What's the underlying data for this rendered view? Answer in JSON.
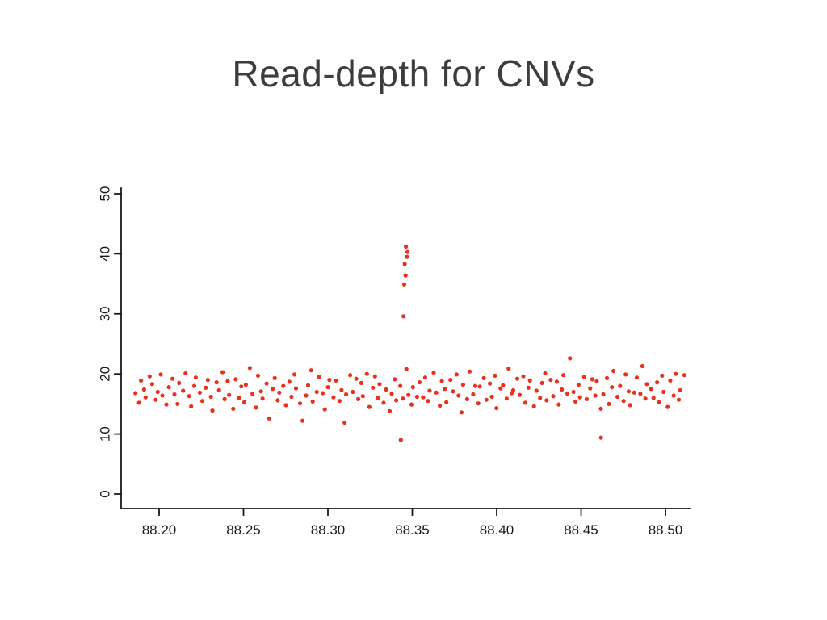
{
  "slide": {
    "title": "Read-depth for CNVs",
    "background": "#ffffff",
    "title_color": "#3d3d3d"
  },
  "chart_data": {
    "type": "scatter",
    "title": "",
    "xlabel": "",
    "ylabel": "",
    "x_ticks": [
      88.2,
      88.25,
      88.3,
      88.35,
      88.4,
      88.45,
      88.5
    ],
    "x_tick_labels": [
      "88.20",
      "88.25",
      "88.30",
      "88.35",
      "88.40",
      "88.45",
      "88.50"
    ],
    "y_ticks": [
      0,
      10,
      20,
      30,
      40,
      50
    ],
    "y_tick_labels": [
      "0",
      "10",
      "20",
      "30",
      "40",
      "50"
    ],
    "xlim": [
      88.183,
      88.516
    ],
    "ylim": [
      0,
      50
    ],
    "grid": false,
    "legend": null,
    "point_color": "#e8321e",
    "axis_color": "#1a1a1a",
    "points": {
      "x": [
        88.186,
        88.1881,
        88.1893,
        88.1911,
        88.192,
        88.1944,
        88.1959,
        88.198,
        88.1992,
        88.201,
        88.2019,
        88.2043,
        88.2058,
        88.2079,
        88.2091,
        88.2109,
        88.2118,
        88.2142,
        88.2157,
        88.2178,
        88.219,
        88.2208,
        88.2217,
        88.2241,
        88.2256,
        88.2277,
        88.2289,
        88.2307,
        88.2316,
        88.234,
        88.2355,
        88.2376,
        88.2388,
        88.2406,
        88.2415,
        88.2439,
        88.2454,
        88.2475,
        88.2487,
        88.2505,
        88.2514,
        88.2538,
        88.2553,
        88.2574,
        88.2586,
        88.2604,
        88.2613,
        88.2637,
        88.2652,
        88.2673,
        88.2685,
        88.2703,
        88.2712,
        88.2736,
        88.2751,
        88.2772,
        88.2784,
        88.2802,
        88.2811,
        88.2835,
        88.285,
        88.2871,
        88.2883,
        88.2901,
        88.291,
        88.2934,
        88.2949,
        88.297,
        88.2982,
        88.3,
        88.3009,
        88.3033,
        88.3048,
        88.3069,
        88.3081,
        88.3099,
        88.3108,
        88.3132,
        88.3147,
        88.3168,
        88.318,
        88.3198,
        88.3207,
        88.3231,
        88.3246,
        88.3267,
        88.3279,
        88.3297,
        88.3306,
        88.333,
        88.3345,
        88.3366,
        88.3378,
        88.3396,
        88.3405,
        88.3429,
        88.3444,
        88.3465,
        88.3477,
        88.3495,
        88.3504,
        88.3528,
        88.3543,
        88.3564,
        88.3576,
        88.3594,
        88.3603,
        88.3627,
        88.3642,
        88.3663,
        88.3675,
        88.3693,
        88.3702,
        88.3726,
        88.3741,
        88.3762,
        88.3774,
        88.3792,
        88.3801,
        88.3825,
        88.384,
        88.3861,
        88.3873,
        88.3891,
        88.39,
        88.3924,
        88.3939,
        88.396,
        88.3972,
        88.399,
        88.3999,
        88.4023,
        88.4038,
        88.4059,
        88.4071,
        88.4089,
        88.4098,
        88.4122,
        88.4137,
        88.4158,
        88.417,
        88.4188,
        88.4197,
        88.4221,
        88.4236,
        88.4257,
        88.4269,
        88.4287,
        88.4296,
        88.432,
        88.4335,
        88.4356,
        88.4368,
        88.4386,
        88.4395,
        88.4419,
        88.4434,
        88.4455,
        88.4467,
        88.4485,
        88.4494,
        88.4518,
        88.4533,
        88.4554,
        88.4566,
        88.4584,
        88.4593,
        88.4617,
        88.4632,
        88.4653,
        88.4665,
        88.4683,
        88.4692,
        88.4716,
        88.4731,
        88.4752,
        88.4764,
        88.4782,
        88.4791,
        88.4815,
        88.483,
        88.4851,
        88.4863,
        88.4881,
        88.489,
        88.4914,
        88.4929,
        88.495,
        88.4962,
        88.498,
        88.4989,
        88.5013,
        88.5028,
        88.5049,
        88.5061,
        88.5079,
        88.5088,
        88.5112,
        88.3432,
        88.3448,
        88.3452,
        88.3455,
        88.346,
        88.3462,
        88.3468,
        88.3472,
        88.4618
      ],
      "y": [
        16.8,
        15.2,
        18.9,
        17.4,
        16.1,
        19.6,
        18.3,
        15.7,
        17.0,
        19.9,
        16.4,
        14.9,
        17.8,
        19.2,
        16.6,
        15.0,
        18.5,
        17.2,
        20.1,
        16.3,
        14.6,
        18.0,
        19.4,
        16.9,
        15.5,
        17.7,
        19.0,
        16.2,
        13.9,
        18.6,
        17.3,
        20.3,
        15.8,
        18.8,
        16.5,
        14.2,
        19.1,
        16.0,
        17.9,
        15.3,
        18.2,
        21.0,
        16.7,
        14.4,
        19.7,
        17.1,
        15.9,
        18.4,
        12.6,
        17.5,
        19.3,
        15.6,
        16.9,
        18.0,
        14.8,
        18.7,
        16.2,
        19.9,
        17.6,
        15.1,
        12.2,
        16.4,
        18.1,
        20.6,
        15.4,
        17.0,
        19.5,
        16.8,
        14.1,
        17.8,
        19.0,
        16.1,
        18.9,
        15.5,
        17.3,
        11.9,
        16.6,
        19.8,
        17.0,
        19.2,
        15.8,
        18.5,
        16.3,
        20.0,
        14.5,
        17.7,
        19.6,
        16.0,
        18.3,
        15.2,
        17.4,
        13.8,
        16.7,
        19.1,
        15.6,
        18.0,
        15.9,
        20.8,
        16.5,
        14.9,
        17.8,
        16.2,
        18.6,
        16.1,
        19.4,
        15.5,
        17.2,
        20.2,
        16.9,
        14.7,
        18.8,
        17.5,
        15.3,
        19.0,
        17.1,
        19.9,
        16.4,
        13.6,
        18.2,
        15.8,
        20.4,
        16.6,
        18.0,
        15.1,
        17.9,
        19.3,
        15.7,
        18.4,
        16.2,
        19.7,
        14.3,
        17.6,
        18.1,
        15.9,
        20.9,
        16.8,
        17.3,
        19.2,
        16.5,
        19.6,
        15.2,
        17.7,
        18.9,
        14.6,
        17.2,
        16.0,
        18.5,
        20.1,
        15.6,
        19.0,
        16.3,
        18.7,
        14.9,
        17.4,
        19.8,
        16.7,
        22.6,
        17.0,
        15.4,
        18.2,
        16.1,
        19.5,
        15.8,
        17.6,
        19.1,
        16.4,
        18.8,
        14.2,
        16.6,
        19.3,
        15.0,
        17.8,
        20.5,
        16.2,
        18.0,
        15.5,
        19.9,
        17.1,
        14.8,
        16.9,
        19.4,
        16.7,
        21.3,
        15.9,
        18.3,
        17.5,
        16.0,
        18.6,
        15.3,
        19.7,
        17.0,
        14.5,
        18.9,
        16.4,
        20.0,
        15.7,
        17.3,
        19.8,
        9.0,
        29.6,
        34.9,
        38.3,
        36.4,
        41.2,
        39.5,
        40.3,
        9.4
      ]
    }
  }
}
